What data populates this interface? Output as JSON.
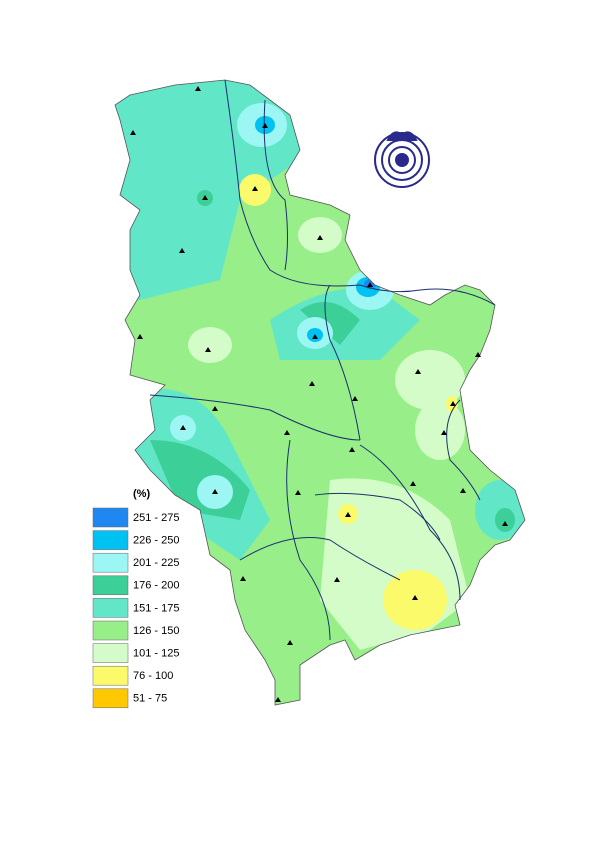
{
  "legend": {
    "title": "(%)",
    "items": [
      {
        "label": "251 - 275",
        "color": "#1e88f0"
      },
      {
        "label": "226 - 250",
        "color": "#00c2f2"
      },
      {
        "label": "201 - 225",
        "color": "#9cf6f4"
      },
      {
        "label": "176 - 200",
        "color": "#3ccf98"
      },
      {
        "label": "151 - 175",
        "color": "#62e6c8"
      },
      {
        "label": "126 - 150",
        "color": "#98ee88"
      },
      {
        "label": "101 - 125",
        "color": "#d4fcc8"
      },
      {
        "label": "76 - 100",
        "color": "#fafa6a"
      },
      {
        "label": "51 - 75",
        "color": "#ffc800"
      }
    ]
  }
}
